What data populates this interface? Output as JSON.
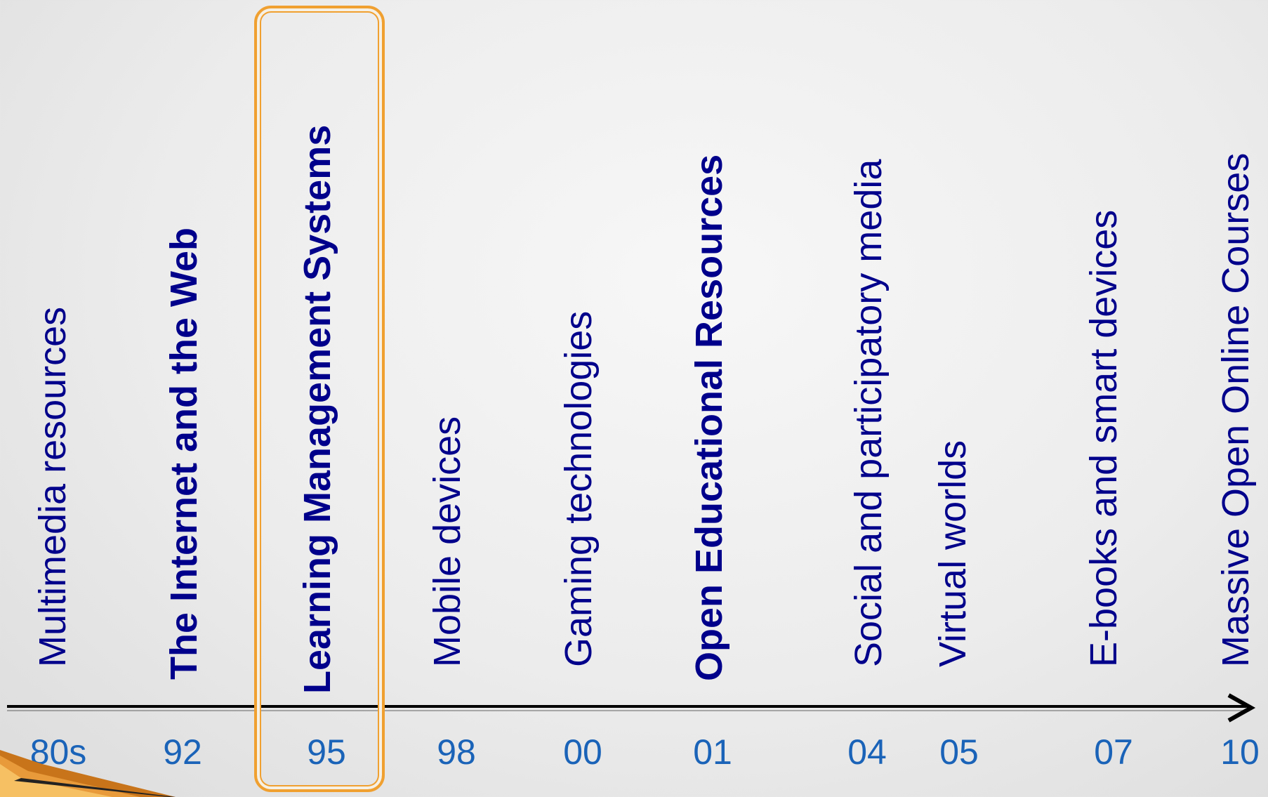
{
  "timeline": {
    "entries": [
      {
        "year": "80s",
        "label": "Multimedia resources",
        "bold": false
      },
      {
        "year": "92",
        "label": "The Internet and the Web",
        "bold": true
      },
      {
        "year": "95",
        "label": "Learning Management Systems",
        "bold": true,
        "highlighted": true
      },
      {
        "year": "98",
        "label": "Mobile devices",
        "bold": false
      },
      {
        "year": "00",
        "label": "Gaming technologies",
        "bold": false
      },
      {
        "year": "01",
        "label": "Open Educational Resources",
        "bold": true
      },
      {
        "year": "04",
        "label": "Social and participatory media",
        "bold": false
      },
      {
        "year": "05",
        "label": "Virtual worlds",
        "bold": false
      },
      {
        "year": "07",
        "label": "E-books and smart devices",
        "bold": false
      },
      {
        "year": "10",
        "label": "Massive Open Online Courses",
        "bold": false
      }
    ]
  },
  "colors": {
    "label_text": "#00008b",
    "year_text": "#1a63b8",
    "highlight_border": "#f0a030",
    "axis": "#000000"
  }
}
